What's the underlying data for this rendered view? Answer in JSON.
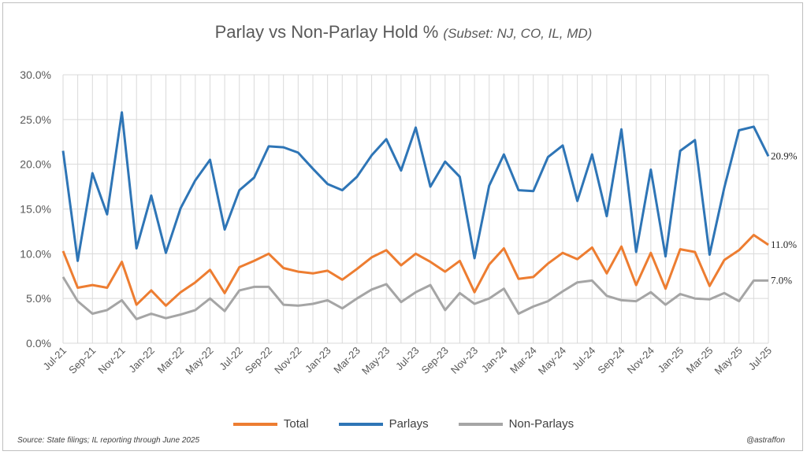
{
  "title": "Parlay vs Non-Parlay Hold %",
  "subtitle": "(Subset: NJ, CO, IL, MD)",
  "source": "Source: State filings;  IL reporting through June 2025",
  "handle": "@astraffon",
  "colors": {
    "total": "#ED7D31",
    "parlays": "#2E75B6",
    "nonparlays": "#A5A5A5",
    "grid": "#D9D9D9"
  },
  "chart_data": {
    "type": "line",
    "title": "Parlay vs Non-Parlay Hold % (Subset: NJ, CO, IL, MD)",
    "ylim": [
      0,
      30
    ],
    "ytick_labels": [
      "0.0%",
      "5.0%",
      "10.0%",
      "15.0%",
      "20.0%",
      "25.0%",
      "30.0%"
    ],
    "grid": true,
    "legend_position": "bottom",
    "x": [
      "Jul-21",
      "Aug-21",
      "Sep-21",
      "Oct-21",
      "Nov-21",
      "Dec-21",
      "Jan-22",
      "Feb-22",
      "Mar-22",
      "Apr-22",
      "May-22",
      "Jun-22",
      "Jul-22",
      "Aug-22",
      "Sep-22",
      "Oct-22",
      "Nov-22",
      "Dec-22",
      "Jan-23",
      "Feb-23",
      "Mar-23",
      "Apr-23",
      "May-23",
      "Jun-23",
      "Jul-23",
      "Aug-23",
      "Sep-23",
      "Oct-23",
      "Nov-23",
      "Dec-23",
      "Jan-24",
      "Feb-24",
      "Mar-24",
      "Apr-24",
      "May-24",
      "Jun-24",
      "Jul-24",
      "Aug-24",
      "Sep-24",
      "Oct-24",
      "Nov-24",
      "Dec-24",
      "Jan-25",
      "Feb-25",
      "Mar-25",
      "Apr-25",
      "May-25",
      "Jun-25",
      "Jul-25"
    ],
    "xtick_labels": [
      "Jul-21",
      "Sep-21",
      "Nov-21",
      "Jan-22",
      "Mar-22",
      "May-22",
      "Jul-22",
      "Sep-22",
      "Nov-22",
      "Jan-23",
      "Mar-23",
      "May-23",
      "Jul-23",
      "Sep-23",
      "Nov-23",
      "Jan-24",
      "Mar-24",
      "May-24",
      "Jul-24",
      "Sep-24",
      "Nov-24",
      "Jan-25",
      "Mar-25",
      "May-25",
      "Jul-25"
    ],
    "series": [
      {
        "name": "Total",
        "color": "#ED7D31",
        "end_label": "11.0%",
        "values": [
          10.3,
          6.2,
          6.5,
          6.2,
          9.1,
          4.3,
          5.9,
          4.2,
          5.7,
          6.8,
          8.2,
          5.6,
          8.5,
          9.2,
          10.0,
          8.4,
          8.0,
          7.8,
          8.1,
          7.1,
          8.3,
          9.6,
          10.4,
          8.7,
          10.0,
          9.1,
          8.0,
          9.2,
          5.7,
          8.8,
          10.6,
          7.2,
          7.4,
          8.9,
          10.1,
          9.4,
          10.7,
          7.8,
          10.8,
          6.5,
          10.1,
          6.1,
          10.5,
          10.2,
          6.4,
          9.3,
          10.4,
          12.1,
          11.0
        ]
      },
      {
        "name": "Parlays",
        "color": "#2E75B6",
        "end_label": "20.9%",
        "values": [
          21.5,
          9.2,
          19.0,
          14.4,
          25.8,
          10.6,
          16.5,
          10.1,
          15.1,
          18.2,
          20.5,
          12.7,
          17.1,
          18.5,
          22.0,
          21.9,
          21.3,
          19.5,
          17.8,
          17.1,
          18.6,
          21.0,
          22.8,
          19.3,
          24.1,
          17.5,
          20.3,
          18.6,
          9.5,
          17.6,
          21.1,
          17.1,
          17.0,
          20.8,
          22.1,
          15.9,
          21.1,
          14.2,
          23.9,
          10.2,
          19.4,
          9.7,
          21.5,
          22.7,
          9.9,
          17.4,
          23.8,
          24.2,
          20.9
        ]
      },
      {
        "name": "Non-Parlays",
        "color": "#A5A5A5",
        "end_label": "7.0%",
        "values": [
          7.4,
          4.7,
          3.3,
          3.7,
          4.8,
          2.7,
          3.3,
          2.8,
          3.2,
          3.7,
          5.0,
          3.6,
          5.9,
          6.3,
          6.3,
          4.3,
          4.2,
          4.4,
          4.8,
          3.9,
          5.0,
          6.0,
          6.6,
          4.6,
          5.7,
          6.5,
          3.7,
          5.6,
          4.4,
          5.0,
          6.1,
          3.3,
          4.1,
          4.7,
          5.8,
          6.8,
          7.0,
          5.3,
          4.8,
          4.7,
          5.7,
          4.3,
          5.5,
          5.0,
          4.9,
          5.6,
          4.7,
          7.0,
          7.0
        ]
      }
    ]
  }
}
